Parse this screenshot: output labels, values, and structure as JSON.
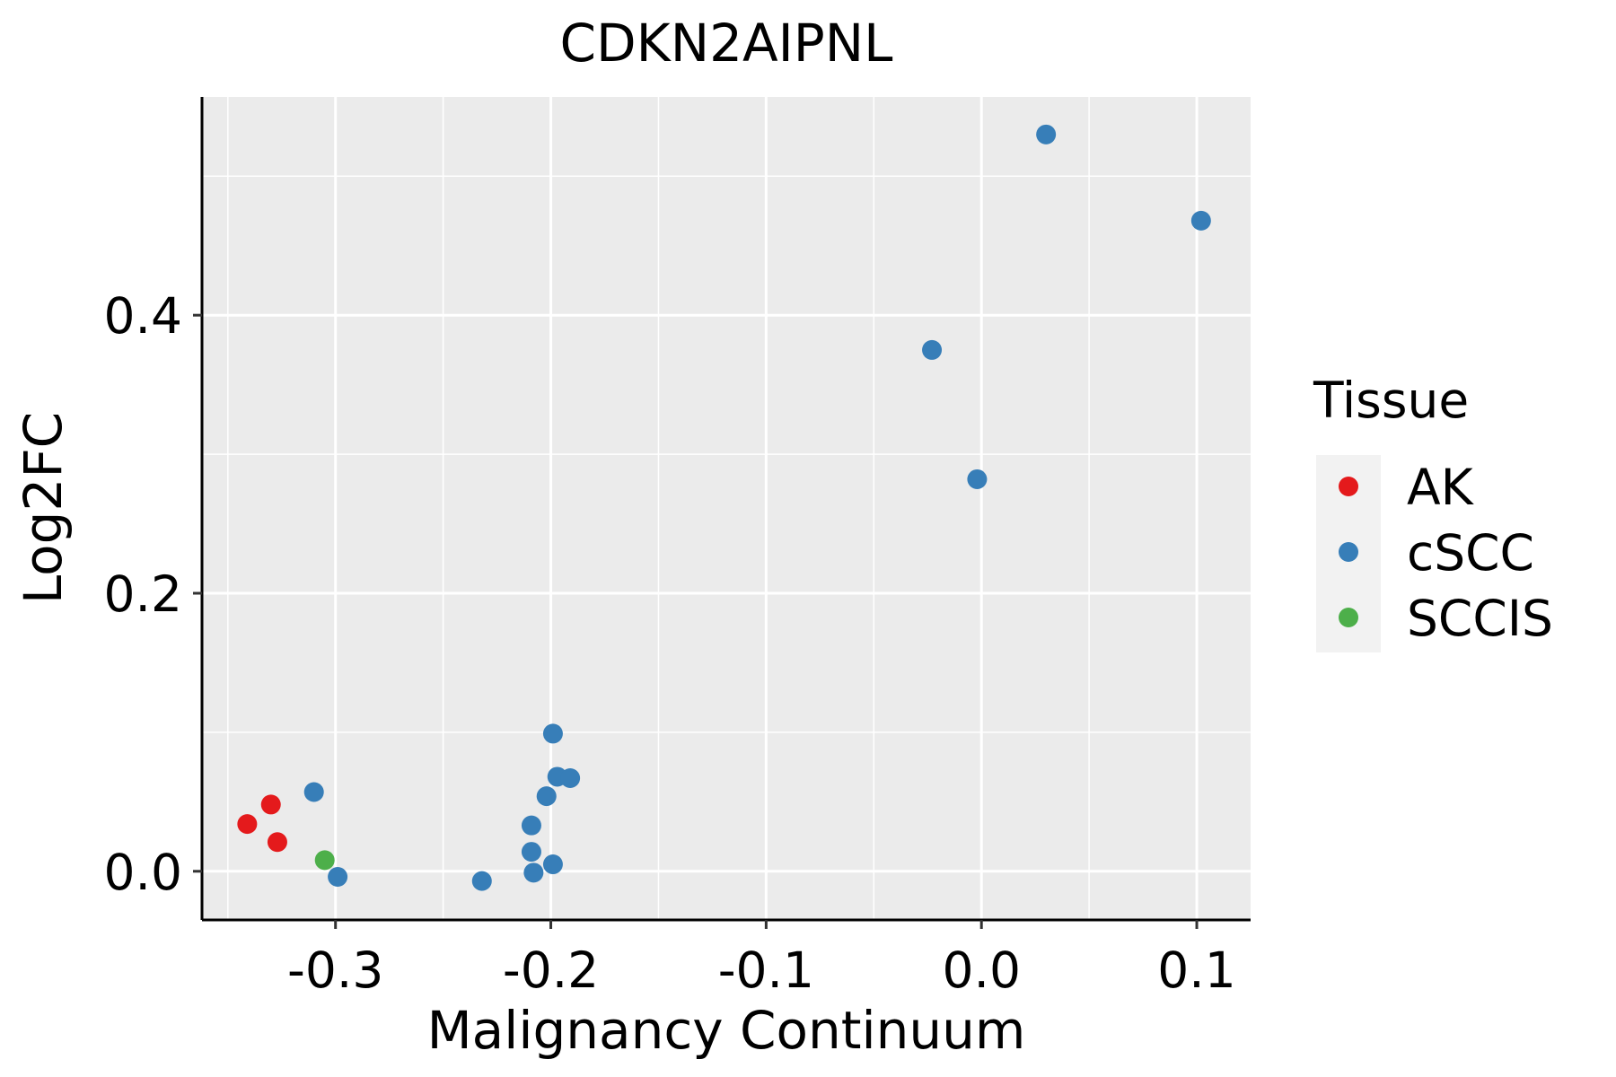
{
  "chart_data": {
    "type": "scatter",
    "title": "CDKN2AIPNL",
    "xlabel": "Malignancy Continuum",
    "ylabel": "Log2FC",
    "xlim": [
      -0.362,
      0.125
    ],
    "ylim": [
      -0.035,
      0.557
    ],
    "x_ticks": [
      -0.3,
      -0.2,
      -0.1,
      0.0,
      0.1
    ],
    "x_tick_labels": [
      "-0.3",
      "-0.2",
      "-0.1",
      "0.0",
      "0.1"
    ],
    "y_ticks": [
      0.0,
      0.2,
      0.4
    ],
    "y_tick_labels": [
      "0.0",
      "0.2",
      "0.4"
    ],
    "grid": true,
    "legend": {
      "title": "Tissue",
      "position": "right",
      "entries": [
        {
          "label": "AK",
          "color": "#E41A1C"
        },
        {
          "label": "cSCC",
          "color": "#377EB8"
        },
        {
          "label": "SCCIS",
          "color": "#4DAF4A"
        }
      ]
    },
    "series": [
      {
        "name": "AK",
        "color": "#E41A1C",
        "points": [
          {
            "x": -0.341,
            "y": 0.034
          },
          {
            "x": -0.33,
            "y": 0.048
          },
          {
            "x": -0.327,
            "y": 0.021
          }
        ]
      },
      {
        "name": "cSCC",
        "color": "#377EB8",
        "points": [
          {
            "x": -0.31,
            "y": 0.057
          },
          {
            "x": -0.299,
            "y": -0.004
          },
          {
            "x": -0.232,
            "y": -0.007
          },
          {
            "x": -0.209,
            "y": 0.033
          },
          {
            "x": -0.209,
            "y": 0.014
          },
          {
            "x": -0.208,
            "y": -0.001
          },
          {
            "x": -0.202,
            "y": 0.054
          },
          {
            "x": -0.199,
            "y": 0.099
          },
          {
            "x": -0.199,
            "y": 0.005
          },
          {
            "x": -0.197,
            "y": 0.068
          },
          {
            "x": -0.191,
            "y": 0.067
          },
          {
            "x": -0.023,
            "y": 0.375
          },
          {
            "x": -0.002,
            "y": 0.282
          },
          {
            "x": 0.03,
            "y": 0.53
          },
          {
            "x": 0.102,
            "y": 0.468
          }
        ]
      },
      {
        "name": "SCCIS",
        "color": "#4DAF4A",
        "points": [
          {
            "x": -0.305,
            "y": 0.008
          }
        ]
      }
    ]
  }
}
